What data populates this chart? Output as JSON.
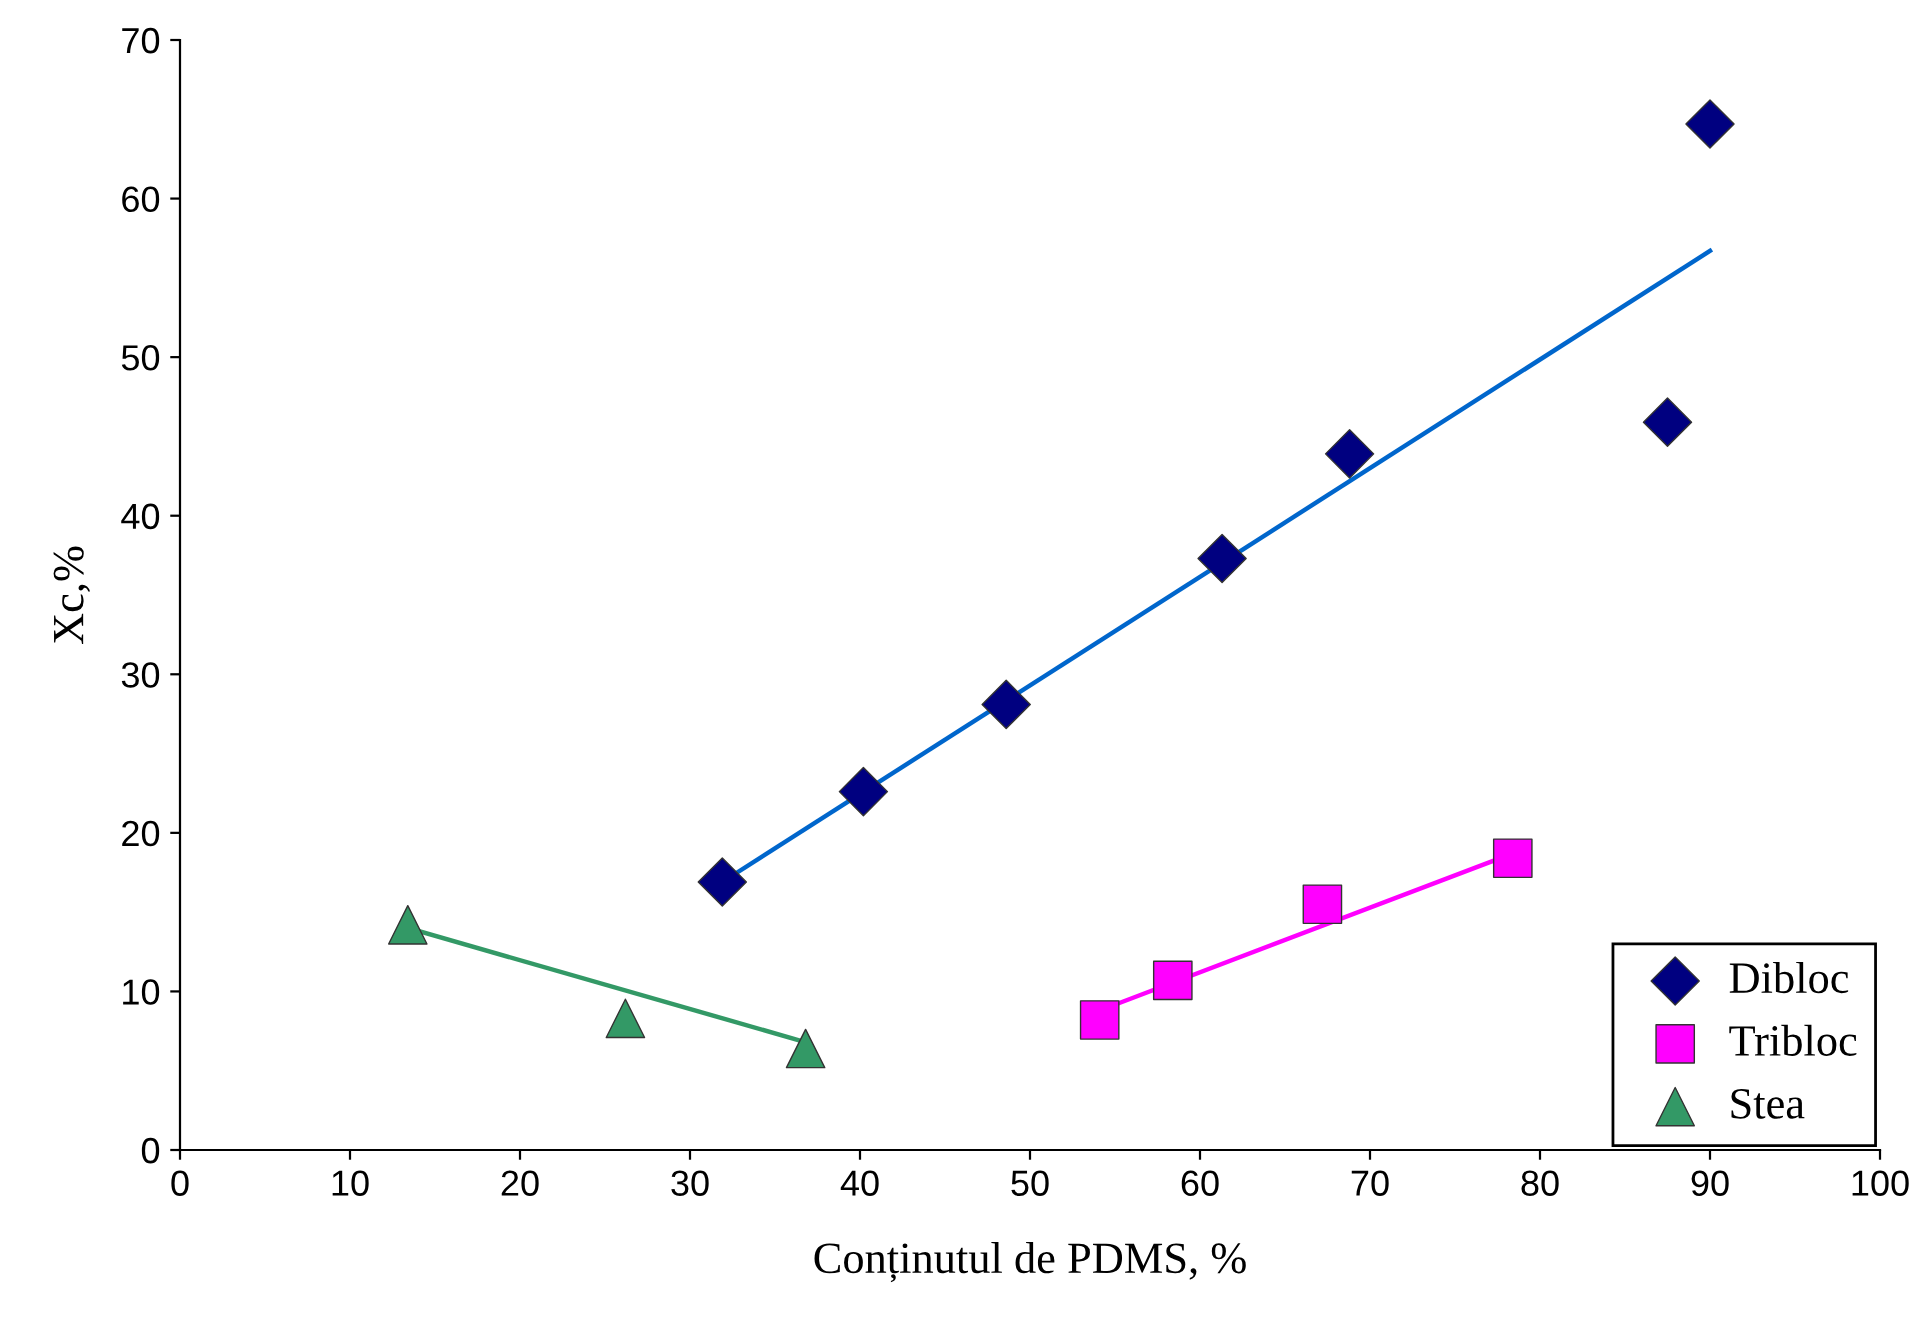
{
  "chart_data": {
    "type": "scatter",
    "xlabel": "Conținutul de PDMS, %",
    "ylabel": "Xc,%",
    "xlim": [
      0,
      100
    ],
    "xticks": [
      0,
      10,
      20,
      30,
      40,
      50,
      60,
      70,
      80,
      90,
      100
    ],
    "ylim": [
      0,
      70
    ],
    "yticks": [
      0,
      10,
      20,
      30,
      40,
      50,
      60,
      70
    ],
    "grid": false,
    "legend": "bottom right",
    "series": [
      {
        "name": "Dibloc",
        "marker": "diamond",
        "color": "#000080",
        "x": [
          31.9,
          40.2,
          48.6,
          61.3,
          68.8,
          87.5,
          90.0
        ],
        "values": [
          16.9,
          22.6,
          28.1,
          37.3,
          43.9,
          45.9,
          64.7
        ]
      },
      {
        "name": "Tribloc",
        "marker": "square",
        "color": "#ff00ff",
        "x": [
          54.1,
          58.4,
          67.2,
          78.4
        ],
        "values": [
          8.2,
          10.7,
          15.5,
          18.4
        ]
      },
      {
        "name": "Stea",
        "marker": "triangle",
        "color": "#339966",
        "x": [
          13.4,
          26.2,
          36.8
        ],
        "values": [
          14.2,
          8.3,
          6.4
        ]
      },
      {
        "type": "line",
        "line_style": "solid",
        "color": "#0066cc",
        "x": [
          31.9,
          90.0
        ],
        "values": [
          16.9,
          56.7
        ]
      },
      {
        "type": "line",
        "line_style": "solid",
        "color": "#ff00ff",
        "x": [
          54.1,
          78.4
        ],
        "values": [
          8.8,
          18.7
        ]
      },
      {
        "type": "line",
        "line_style": "solid",
        "color": "#339966",
        "x": [
          13.4,
          36.8
        ],
        "values": [
          14.0,
          6.8
        ]
      }
    ]
  }
}
